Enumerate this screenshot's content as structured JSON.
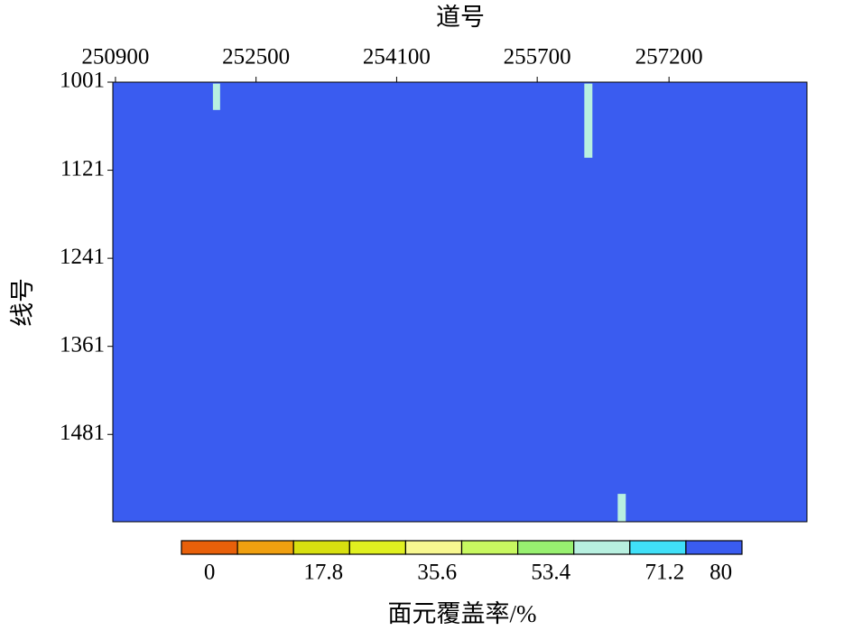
{
  "chart_data": {
    "type": "heatmap",
    "title": "道号",
    "ylabel": "线号",
    "xlim": [
      250870,
      258770
    ],
    "ylim": [
      1001,
      1600
    ],
    "y_inverted": true,
    "xticks": [
      250900,
      252500,
      254100,
      255700,
      257200
    ],
    "yticks": [
      1001,
      1121,
      1241,
      1361,
      1481
    ],
    "cells": [
      {
        "x0": 250870,
        "x1": 258770,
        "y0": 1001,
        "y1": 1600,
        "value": 80
      },
      {
        "x0": 252009,
        "x1": 252091,
        "y0": 1003,
        "y1": 1039,
        "value": 65
      },
      {
        "x0": 252009,
        "x1": 252091,
        "y0": 1039,
        "y1": 1061,
        "value": 75
      },
      {
        "x0": 252758,
        "x1": 252850,
        "y0": 1003,
        "y1": 1012,
        "value": 75
      },
      {
        "x0": 254358,
        "x1": 254451,
        "y0": 1003,
        "y1": 1018,
        "value": 75
      },
      {
        "x0": 256236,
        "x1": 256328,
        "y0": 1003,
        "y1": 1104,
        "value": 65
      },
      {
        "x0": 257180,
        "x1": 257272,
        "y0": 1014,
        "y1": 1051,
        "value": 75
      },
      {
        "x0": 257180,
        "x1": 257272,
        "y0": 1116,
        "y1": 1150,
        "value": 75
      },
      {
        "x0": 256061,
        "x1": 256133,
        "y0": 1129,
        "y1": 1162,
        "value": 75
      },
      {
        "x0": 251917,
        "x1": 252009,
        "y0": 1197,
        "y1": 1210,
        "value": 75
      },
      {
        "x0": 251434,
        "x1": 251537,
        "y0": 1372,
        "y1": 1377,
        "value": 75
      },
      {
        "x0": 255025,
        "x1": 255118,
        "y0": 1387,
        "y1": 1394,
        "value": 75
      },
      {
        "x0": 257365,
        "x1": 257457,
        "y0": 1360,
        "y1": 1363,
        "value": 75
      },
      {
        "x0": 256616,
        "x1": 256708,
        "y0": 1550,
        "y1": 1562,
        "value": 75
      },
      {
        "x0": 256616,
        "x1": 256708,
        "y0": 1562,
        "y1": 1600,
        "value": 65
      }
    ],
    "colorbar": {
      "label": "面元覆盖率/%",
      "lim": [
        -4.4,
        83.3
      ],
      "ticks": [
        0,
        17.8,
        35.6,
        53.4,
        71.2,
        80
      ],
      "colors": [
        "#e8600a",
        "#f0a010",
        "#d8e010",
        "#e0f020",
        "#f8f890",
        "#c8f860",
        "#98f070",
        "#b8f0e0",
        "#40e0f8",
        "#3a5cf0"
      ]
    }
  }
}
